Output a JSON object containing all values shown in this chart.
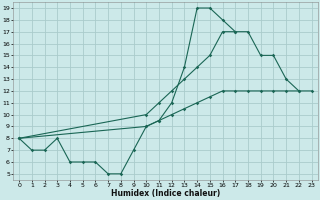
{
  "bg_color": "#cce9e9",
  "grid_color": "#aacccc",
  "line_color": "#1a6655",
  "xlabel": "Humidex (Indice chaleur)",
  "xlim": [
    -0.5,
    23.5
  ],
  "ylim": [
    4.5,
    19.5
  ],
  "xticks": [
    0,
    1,
    2,
    3,
    4,
    5,
    6,
    7,
    8,
    9,
    10,
    11,
    12,
    13,
    14,
    15,
    16,
    17,
    18,
    19,
    20,
    21,
    22,
    23
  ],
  "yticks": [
    5,
    6,
    7,
    8,
    9,
    10,
    11,
    12,
    13,
    14,
    15,
    16,
    17,
    18,
    19
  ],
  "line1_x": [
    0,
    1,
    2,
    3,
    4,
    5,
    6,
    7,
    8,
    9,
    10,
    11,
    12,
    13,
    14,
    15,
    16,
    17
  ],
  "line1_y": [
    8,
    7,
    7,
    8,
    6,
    6,
    6,
    5,
    5,
    7,
    9,
    9.5,
    11,
    14,
    19,
    19,
    18,
    17
  ],
  "line2_x": [
    0,
    10,
    11,
    12,
    13,
    14,
    15,
    16,
    17,
    18,
    19,
    20,
    21,
    22
  ],
  "line2_y": [
    8,
    10,
    11,
    12,
    13,
    14,
    15,
    17,
    17,
    17,
    15,
    15,
    13,
    12
  ],
  "line3_x": [
    0,
    10,
    11,
    12,
    13,
    14,
    15,
    16,
    17,
    18,
    19,
    20,
    21,
    22,
    23
  ],
  "line3_y": [
    8,
    9,
    9.5,
    10,
    10.5,
    11,
    11.5,
    12,
    12,
    12,
    12,
    12,
    12,
    12,
    12
  ]
}
